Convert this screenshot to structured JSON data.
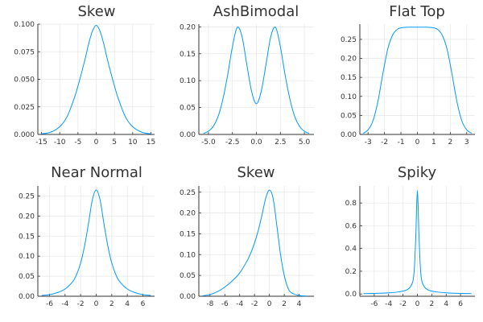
{
  "style": {
    "line_color": "#009af9",
    "grid_color": "#e6e6e6",
    "axis_color": "#333333",
    "grid": true
  },
  "chart_data": [
    {
      "type": "line",
      "title": "Skew",
      "xlim": [
        -16,
        16
      ],
      "ylim": [
        0,
        0.1
      ],
      "xticks": [
        -15,
        -10,
        -5,
        0,
        5,
        10,
        15
      ],
      "xtick_labels": [
        "-15",
        "-10",
        "-5",
        "0",
        "5",
        "10",
        "15"
      ],
      "yticks": [
        0,
        0.025,
        0.05,
        0.075,
        0.1
      ],
      "ytick_labels": [
        "0.000",
        "0.025",
        "0.050",
        "0.075",
        "0.100"
      ],
      "x": [
        -15,
        -12.5,
        -10,
        -8,
        -6,
        -5,
        -4,
        -3,
        -2,
        -1,
        0,
        1,
        2,
        3,
        4,
        5,
        6,
        8,
        10,
        12.5,
        15
      ],
      "y": [
        0.0005,
        0.002,
        0.007,
        0.016,
        0.033,
        0.044,
        0.056,
        0.069,
        0.083,
        0.094,
        0.099,
        0.094,
        0.083,
        0.069,
        0.056,
        0.044,
        0.033,
        0.016,
        0.007,
        0.002,
        0.0005
      ]
    },
    {
      "type": "line",
      "title": "AshBimodal",
      "xlim": [
        -6,
        6
      ],
      "ylim": [
        0,
        0.205
      ],
      "xticks": [
        -5,
        -2.5,
        0,
        2.5,
        5
      ],
      "xtick_labels": [
        "-5.0",
        "-2.5",
        "0.0",
        "2.5",
        "5.0"
      ],
      "yticks": [
        0,
        0.05,
        0.1,
        0.15,
        0.2
      ],
      "ytick_labels": [
        "0.00",
        "0.05",
        "0.10",
        "0.15",
        "0.20"
      ],
      "x": [
        -5.5,
        -5,
        -4.5,
        -4,
        -3.5,
        -3,
        -2.5,
        -2,
        -1.5,
        -1,
        -0.5,
        0,
        0.5,
        1,
        1.5,
        2,
        2.5,
        3,
        3.5,
        4,
        4.5,
        5,
        5.5
      ],
      "y": [
        0.002,
        0.006,
        0.015,
        0.033,
        0.065,
        0.11,
        0.163,
        0.199,
        0.182,
        0.13,
        0.08,
        0.057,
        0.08,
        0.13,
        0.182,
        0.199,
        0.163,
        0.11,
        0.065,
        0.033,
        0.015,
        0.006,
        0.002
      ]
    },
    {
      "type": "line",
      "title": "Flat Top",
      "xlim": [
        -3.5,
        3.5
      ],
      "ylim": [
        0,
        0.29
      ],
      "xticks": [
        -3,
        -2,
        -1,
        0,
        1,
        2,
        3
      ],
      "xtick_labels": [
        "-3",
        "-2",
        "-1",
        "0",
        "1",
        "2",
        "3"
      ],
      "yticks": [
        0,
        0.05,
        0.1,
        0.15,
        0.2,
        0.25
      ],
      "ytick_labels": [
        "0.00",
        "0.05",
        "0.10",
        "0.15",
        "0.20",
        "0.25"
      ],
      "x": [
        -3.3,
        -3,
        -2.7,
        -2.4,
        -2.1,
        -1.8,
        -1.5,
        -1.2,
        -0.9,
        -0.6,
        -0.3,
        0,
        0.3,
        0.6,
        0.9,
        1.2,
        1.5,
        1.8,
        2.1,
        2.4,
        2.7,
        3,
        3.3
      ],
      "y": [
        0.003,
        0.012,
        0.036,
        0.087,
        0.16,
        0.225,
        0.262,
        0.277,
        0.281,
        0.282,
        0.282,
        0.282,
        0.282,
        0.282,
        0.281,
        0.277,
        0.262,
        0.225,
        0.16,
        0.087,
        0.036,
        0.012,
        0.003
      ]
    },
    {
      "type": "line",
      "title": "Near Normal",
      "xlim": [
        -7.5,
        7.5
      ],
      "ylim": [
        0,
        0.275
      ],
      "xticks": [
        -6,
        -4,
        -2,
        0,
        2,
        4,
        6
      ],
      "xtick_labels": [
        "-6",
        "-4",
        "-2",
        "0",
        "2",
        "4",
        "6"
      ],
      "yticks": [
        0,
        0.05,
        0.1,
        0.15,
        0.2,
        0.25
      ],
      "ytick_labels": [
        "0.00",
        "0.05",
        "0.10",
        "0.15",
        "0.20",
        "0.25"
      ],
      "x": [
        -7,
        -6,
        -5,
        -4,
        -3,
        -2.5,
        -2,
        -1.5,
        -1,
        -0.5,
        0,
        0.5,
        1,
        1.5,
        2,
        2.5,
        3,
        4,
        5,
        6,
        7
      ],
      "y": [
        0.002,
        0.004,
        0.009,
        0.018,
        0.037,
        0.055,
        0.083,
        0.125,
        0.18,
        0.24,
        0.265,
        0.24,
        0.18,
        0.125,
        0.083,
        0.055,
        0.037,
        0.018,
        0.009,
        0.004,
        0.002
      ]
    },
    {
      "type": "line",
      "title": "Skew",
      "xlim": [
        -9.5,
        6
      ],
      "ylim": [
        0,
        0.265
      ],
      "xticks": [
        -8,
        -6,
        -4,
        -2,
        0,
        2,
        4
      ],
      "xtick_labels": [
        "-8",
        "-6",
        "-4",
        "-2",
        "0",
        "2",
        "4"
      ],
      "yticks": [
        0,
        0.05,
        0.1,
        0.15,
        0.2,
        0.25
      ],
      "ytick_labels": [
        "0.00",
        "0.05",
        "0.10",
        "0.15",
        "0.20",
        "0.25"
      ],
      "x": [
        -9,
        -8,
        -7,
        -6,
        -5,
        -4,
        -3,
        -2.5,
        -2,
        -1.5,
        -1,
        -0.5,
        0,
        0.5,
        1,
        1.5,
        2,
        2.5,
        3,
        4,
        5
      ],
      "y": [
        0.001,
        0.004,
        0.011,
        0.022,
        0.037,
        0.056,
        0.085,
        0.104,
        0.128,
        0.158,
        0.195,
        0.235,
        0.255,
        0.235,
        0.17,
        0.1,
        0.05,
        0.02,
        0.008,
        0.002,
        0.0005
      ]
    },
    {
      "type": "line",
      "title": "Spiky",
      "xlim": [
        -8,
        8
      ],
      "ylim": [
        -0.02,
        0.95
      ],
      "xticks": [
        -6,
        -4,
        -2,
        0,
        2,
        4,
        6
      ],
      "xtick_labels": [
        "-6",
        "-4",
        "-2",
        "0",
        "2",
        "4",
        "6"
      ],
      "yticks": [
        0,
        0.2,
        0.4,
        0.6,
        0.8
      ],
      "ytick_labels": [
        "0.0",
        "0.2",
        "0.4",
        "0.6",
        "0.8"
      ],
      "x": [
        -7.5,
        -6,
        -5,
        -4,
        -3,
        -2,
        -1.5,
        -1,
        -0.6,
        -0.4,
        -0.2,
        -0.1,
        0,
        0.1,
        0.2,
        0.4,
        0.6,
        1,
        1.5,
        2,
        3,
        4,
        5,
        6,
        7.5
      ],
      "y": [
        0.003,
        0.005,
        0.007,
        0.01,
        0.015,
        0.025,
        0.035,
        0.06,
        0.12,
        0.25,
        0.55,
        0.78,
        0.91,
        0.78,
        0.55,
        0.25,
        0.12,
        0.06,
        0.035,
        0.025,
        0.015,
        0.01,
        0.007,
        0.005,
        0.003
      ]
    }
  ]
}
